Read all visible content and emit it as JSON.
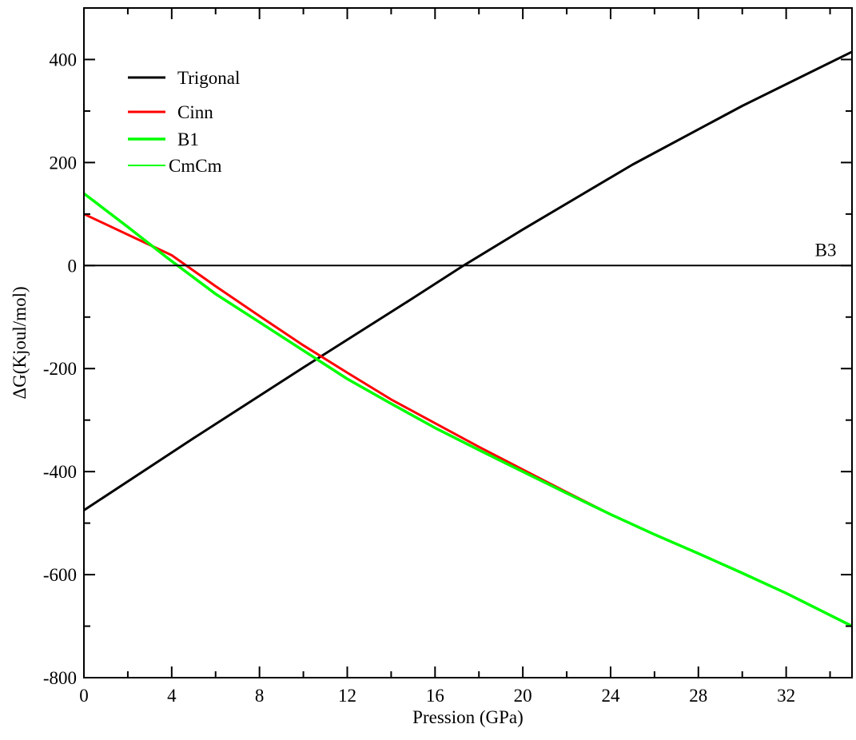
{
  "chart_data": {
    "type": "line",
    "title": "",
    "xlabel": "Pression (GPa)",
    "ylabel": "ΔG(Kjoul/mol)",
    "xlim": [
      0,
      35
    ],
    "ylim": [
      -800,
      500
    ],
    "x_ticks": [
      0,
      4,
      8,
      12,
      16,
      20,
      24,
      28,
      32
    ],
    "y_ticks": [
      -800,
      -600,
      -400,
      -200,
      0,
      200,
      400
    ],
    "grid": false,
    "legend_position": "top-left",
    "series": [
      {
        "name": "Trigonal",
        "color": "#000000",
        "x": [
          0,
          5,
          10,
          15,
          17.3,
          20,
          25,
          30,
          35
        ],
        "y": [
          -475,
          -335,
          -198,
          -63,
          0,
          70,
          196,
          310,
          415
        ]
      },
      {
        "name": "Cinn",
        "color": "#ff0000",
        "x": [
          0,
          2,
          4,
          4.5,
          6,
          8,
          10,
          12,
          14,
          16,
          18,
          20,
          22,
          24
        ],
        "y": [
          100,
          60,
          20,
          5,
          -40,
          -98,
          -155,
          -208,
          -260,
          -306,
          -352,
          -396,
          -440,
          -483
        ]
      },
      {
        "name": "B1",
        "color": "#00ff00",
        "x": [
          0,
          2,
          3.8,
          6,
          8,
          10,
          12,
          14,
          16,
          18,
          20,
          22,
          24,
          26,
          28,
          30,
          32,
          35
        ],
        "y": [
          140,
          75,
          15,
          -55,
          -110,
          -165,
          -220,
          -268,
          -315,
          -358,
          -400,
          -442,
          -483,
          -522,
          -559,
          -597,
          -636,
          -700
        ]
      },
      {
        "name": "CmCm",
        "color": "#00ff00",
        "x": [],
        "y": []
      },
      {
        "name": "B3",
        "color": "#000000",
        "x": [
          0,
          35
        ],
        "y": [
          0,
          0
        ]
      }
    ],
    "annotations": [
      {
        "text": "B3",
        "x": 33.8,
        "y": 18
      }
    ]
  }
}
